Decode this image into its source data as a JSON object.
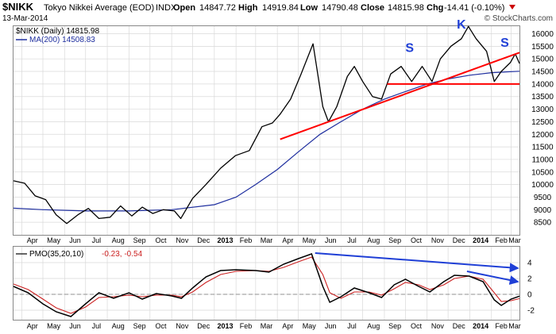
{
  "header": {
    "symbol": "$NIKK",
    "name": "Tokyo Nikkei Average (EOD)",
    "exchange": "INDX",
    "date": "13-Mar-2014",
    "brand": "© StockCharts.com",
    "quote": {
      "open_label": "Open",
      "open": "14847.72",
      "high_label": "High",
      "high": "14919.84",
      "low_label": "Low",
      "low": "14790.48",
      "close_label": "Close",
      "close": "14815.98",
      "chg_label": "Chg",
      "chg": "-14.41 (-0.10%)"
    }
  },
  "legend": {
    "price": "$NIKK (Daily) 14815.98",
    "ma": "MA(200) 14508.83",
    "pmo_label": "PMO(35,20,10)",
    "pmo_values": "-0.23, -0.54"
  },
  "colors": {
    "price": "#000000",
    "ma": "#1f2f9f",
    "trendline": "#ff0000",
    "annotation": "#1f3fd6",
    "pmo": "#000000",
    "pmo_signal": "#cc2222",
    "grid": "#d9d9d9",
    "frame": "#888888",
    "down_arrow": "#cc0000"
  },
  "x_axis": {
    "labels": [
      "Apr",
      "May",
      "Jun",
      "Jul",
      "Aug",
      "Sep",
      "Oct",
      "Nov",
      "Dec",
      "2013",
      "Feb",
      "Mar",
      "Apr",
      "May",
      "Jun",
      "Jul",
      "Aug",
      "Sep",
      "Oct",
      "Nov",
      "Dec",
      "2014",
      "Feb",
      "Mar"
    ],
    "bold": [
      false,
      false,
      false,
      false,
      false,
      false,
      false,
      false,
      false,
      true,
      false,
      false,
      false,
      false,
      false,
      false,
      false,
      false,
      false,
      false,
      false,
      true,
      false,
      false
    ]
  },
  "chart_data": [
    {
      "type": "line",
      "title": "$NIKK Tokyo Nikkei Average (EOD) INDX",
      "y_ticks": [
        8500,
        9000,
        9500,
        10000,
        10500,
        11000,
        11500,
        12000,
        12500,
        13000,
        13500,
        14000,
        14500,
        15000,
        15500,
        16000
      ],
      "ylim": [
        8000,
        16300
      ],
      "x_range": [
        "2012-03-20",
        "2014-03-13"
      ],
      "series": [
        {
          "name": "$NIKK (Daily)",
          "points": [
            [
              "2012-03-20",
              10150
            ],
            [
              "2012-04-05",
              10050
            ],
            [
              "2012-04-20",
              9550
            ],
            [
              "2012-05-05",
              9400
            ],
            [
              "2012-05-20",
              8800
            ],
            [
              "2012-06-04",
              8450
            ],
            [
              "2012-06-20",
              8800
            ],
            [
              "2012-07-05",
              9050
            ],
            [
              "2012-07-20",
              8650
            ],
            [
              "2012-08-05",
              8700
            ],
            [
              "2012-08-20",
              9150
            ],
            [
              "2012-09-05",
              8750
            ],
            [
              "2012-09-20",
              9100
            ],
            [
              "2012-10-05",
              8850
            ],
            [
              "2012-10-20",
              9000
            ],
            [
              "2012-11-05",
              8950
            ],
            [
              "2012-11-14",
              8650
            ],
            [
              "2012-12-01",
              9450
            ],
            [
              "2012-12-20",
              10000
            ],
            [
              "2013-01-10",
              10650
            ],
            [
              "2013-01-31",
              11150
            ],
            [
              "2013-02-20",
              11350
            ],
            [
              "2013-03-10",
              12300
            ],
            [
              "2013-03-25",
              12450
            ],
            [
              "2013-04-05",
              12800
            ],
            [
              "2013-04-20",
              13400
            ],
            [
              "2013-05-05",
              14400
            ],
            [
              "2013-05-22",
              15600
            ],
            [
              "2013-06-05",
              13100
            ],
            [
              "2013-06-13",
              12500
            ],
            [
              "2013-06-25",
              13100
            ],
            [
              "2013-07-10",
              14300
            ],
            [
              "2013-07-20",
              14700
            ],
            [
              "2013-08-01",
              14100
            ],
            [
              "2013-08-15",
              13500
            ],
            [
              "2013-08-28",
              13400
            ],
            [
              "2013-09-10",
              14400
            ],
            [
              "2013-09-25",
              14700
            ],
            [
              "2013-10-10",
              14100
            ],
            [
              "2013-10-25",
              14700
            ],
            [
              "2013-11-08",
              14100
            ],
            [
              "2013-11-20",
              15000
            ],
            [
              "2013-12-05",
              15500
            ],
            [
              "2013-12-20",
              15800
            ],
            [
              "2013-12-30",
              16290
            ],
            [
              "2014-01-10",
              15800
            ],
            [
              "2014-01-25",
              15300
            ],
            [
              "2014-02-05",
              14100
            ],
            [
              "2014-02-15",
              14500
            ],
            [
              "2014-02-28",
              14850
            ],
            [
              "2014-03-07",
              15200
            ],
            [
              "2014-03-13",
              14816
            ]
          ]
        },
        {
          "name": "MA(200)",
          "points": [
            [
              "2012-03-20",
              9060
            ],
            [
              "2012-05-01",
              9000
            ],
            [
              "2012-07-01",
              8950
            ],
            [
              "2012-09-01",
              8950
            ],
            [
              "2012-11-01",
              9000
            ],
            [
              "2013-01-01",
              9200
            ],
            [
              "2013-02-01",
              9500
            ],
            [
              "2013-03-01",
              10000
            ],
            [
              "2013-04-01",
              10600
            ],
            [
              "2013-05-01",
              11300
            ],
            [
              "2013-06-01",
              12000
            ],
            [
              "2013-07-01",
              12500
            ],
            [
              "2013-08-01",
              13000
            ],
            [
              "2013-09-01",
              13400
            ],
            [
              "2013-10-01",
              13700
            ],
            [
              "2013-11-01",
              14000
            ],
            [
              "2013-12-01",
              14200
            ],
            [
              "2014-01-01",
              14350
            ],
            [
              "2014-02-01",
              14450
            ],
            [
              "2014-03-13",
              14509
            ]
          ]
        }
      ],
      "trendlines": [
        {
          "from": [
            "2013-04-05",
            11800
          ],
          "to": [
            "2014-03-13",
            15250
          ]
        },
        {
          "from": [
            "2013-09-05",
            14000
          ],
          "to": [
            "2014-03-13",
            14000
          ]
        }
      ],
      "annotations": [
        {
          "text": "S",
          "at": [
            "2013-10-07",
            15280
          ]
        },
        {
          "text": "K",
          "at": [
            "2013-12-20",
            16200
          ]
        },
        {
          "text": "S",
          "at": [
            "2014-02-20",
            15480
          ]
        }
      ]
    },
    {
      "type": "line",
      "title": "PMO(35,20,10)",
      "y_ticks": [
        -2,
        0,
        2,
        4
      ],
      "ylim": [
        -3.2,
        6
      ],
      "zero_line": 0,
      "series": [
        {
          "name": "PMO",
          "points": [
            [
              "2012-03-20",
              1.0
            ],
            [
              "2012-04-10",
              0.2
            ],
            [
              "2012-05-01",
              -1.2
            ],
            [
              "2012-05-20",
              -2.2
            ],
            [
              "2012-06-10",
              -2.8
            ],
            [
              "2012-07-01",
              -1.2
            ],
            [
              "2012-07-20",
              0.2
            ],
            [
              "2012-08-10",
              -0.5
            ],
            [
              "2012-09-01",
              0.2
            ],
            [
              "2012-09-20",
              -0.6
            ],
            [
              "2012-10-10",
              0.1
            ],
            [
              "2012-11-01",
              -0.2
            ],
            [
              "2012-11-15",
              -0.5
            ],
            [
              "2012-12-01",
              0.8
            ],
            [
              "2012-12-20",
              2.2
            ],
            [
              "2013-01-10",
              3.0
            ],
            [
              "2013-02-01",
              3.1
            ],
            [
              "2013-03-01",
              3.0
            ],
            [
              "2013-03-20",
              2.8
            ],
            [
              "2013-04-10",
              3.8
            ],
            [
              "2013-05-01",
              4.5
            ],
            [
              "2013-05-20",
              5.1
            ],
            [
              "2013-06-05",
              1.0
            ],
            [
              "2013-06-15",
              -1.0
            ],
            [
              "2013-07-01",
              -0.3
            ],
            [
              "2013-07-20",
              0.8
            ],
            [
              "2013-08-10",
              0.2
            ],
            [
              "2013-08-28",
              -0.4
            ],
            [
              "2013-09-15",
              1.2
            ],
            [
              "2013-10-01",
              1.9
            ],
            [
              "2013-10-20",
              1.0
            ],
            [
              "2013-11-05",
              0.3
            ],
            [
              "2013-11-25",
              1.6
            ],
            [
              "2013-12-10",
              2.4
            ],
            [
              "2013-12-31",
              2.3
            ],
            [
              "2014-01-20",
              1.6
            ],
            [
              "2014-02-05",
              -0.7
            ],
            [
              "2014-02-15",
              -1.4
            ],
            [
              "2014-03-01",
              -0.6
            ],
            [
              "2014-03-13",
              -0.23
            ]
          ]
        },
        {
          "name": "Signal",
          "points": [
            [
              "2012-03-20",
              1.3
            ],
            [
              "2012-04-10",
              0.6
            ],
            [
              "2012-05-01",
              -0.6
            ],
            [
              "2012-05-20",
              -1.7
            ],
            [
              "2012-06-10",
              -2.4
            ],
            [
              "2012-07-01",
              -1.6
            ],
            [
              "2012-07-20",
              -0.4
            ],
            [
              "2012-08-10",
              -0.3
            ],
            [
              "2012-09-01",
              -0.1
            ],
            [
              "2012-09-20",
              -0.3
            ],
            [
              "2012-10-10",
              -0.1
            ],
            [
              "2012-11-01",
              -0.1
            ],
            [
              "2012-11-15",
              -0.3
            ],
            [
              "2012-12-01",
              0.3
            ],
            [
              "2012-12-20",
              1.5
            ],
            [
              "2013-01-10",
              2.5
            ],
            [
              "2013-02-01",
              2.9
            ],
            [
              "2013-03-01",
              3.0
            ],
            [
              "2013-03-20",
              2.9
            ],
            [
              "2013-04-10",
              3.4
            ],
            [
              "2013-05-01",
              4.1
            ],
            [
              "2013-05-20",
              4.7
            ],
            [
              "2013-06-05",
              2.5
            ],
            [
              "2013-06-15",
              0.2
            ],
            [
              "2013-07-01",
              -0.5
            ],
            [
              "2013-07-20",
              0.3
            ],
            [
              "2013-08-10",
              0.3
            ],
            [
              "2013-08-28",
              -0.1
            ],
            [
              "2013-09-15",
              0.7
            ],
            [
              "2013-10-01",
              1.5
            ],
            [
              "2013-10-20",
              1.2
            ],
            [
              "2013-11-05",
              0.6
            ],
            [
              "2013-11-25",
              1.2
            ],
            [
              "2013-12-10",
              2.0
            ],
            [
              "2013-12-31",
              2.3
            ],
            [
              "2014-01-20",
              1.9
            ],
            [
              "2014-02-05",
              0.2
            ],
            [
              "2014-02-15",
              -0.9
            ],
            [
              "2014-03-01",
              -0.8
            ],
            [
              "2014-03-13",
              -0.54
            ]
          ]
        }
      ],
      "arrows": [
        {
          "from": [
            "2013-05-25",
            5.2
          ],
          "to": [
            "2014-03-10",
            3.3
          ]
        },
        {
          "from": [
            "2013-12-28",
            2.9
          ],
          "to": [
            "2014-03-10",
            1.6
          ]
        }
      ]
    }
  ]
}
